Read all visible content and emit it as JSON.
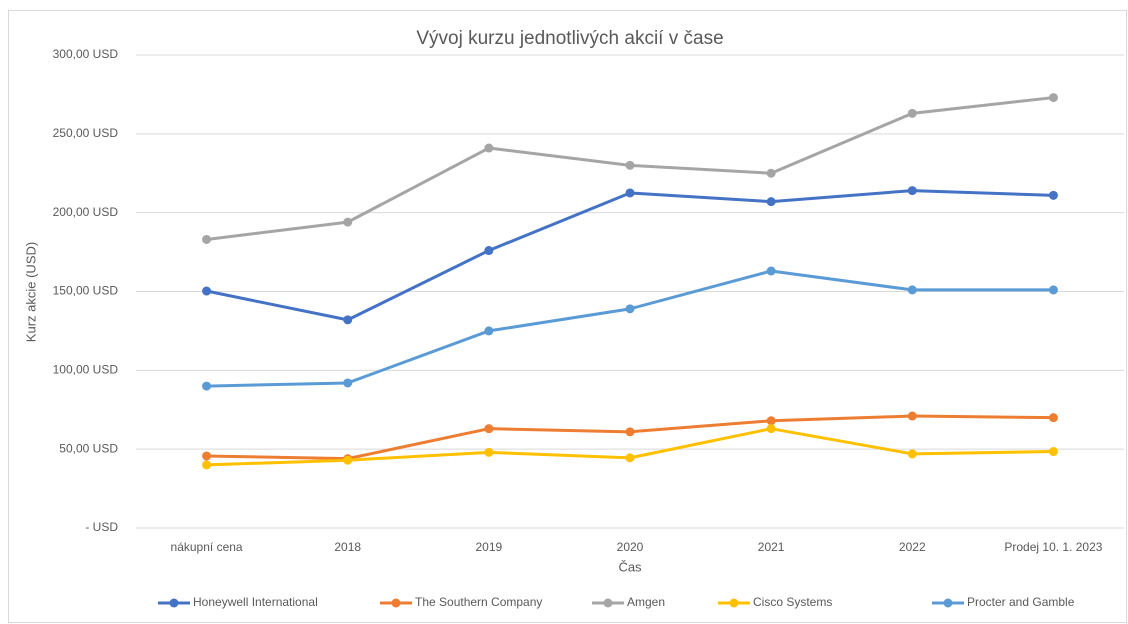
{
  "chart_data": {
    "type": "line",
    "title": "Vývoj kurzu jednotlivých akcií v čase",
    "x_label": "Čas",
    "y_label": "Kurz akcie (USD)",
    "categories": [
      "nákupní cena",
      "2018",
      "2019",
      "2020",
      "2021",
      "2022",
      "Prodej 10. 1. 2023"
    ],
    "series": [
      {
        "name": "Honeywell International",
        "color": "#4472c4",
        "values": [
          150.3,
          132,
          176,
          212.5,
          207,
          214,
          211
        ]
      },
      {
        "name": "The Southern Company",
        "color": "#ed7d31",
        "values": [
          45.7,
          44,
          63,
          61,
          68,
          71,
          70
        ]
      },
      {
        "name": "Amgen",
        "color": "#a5a5a5",
        "values": [
          183,
          194,
          241,
          230,
          225,
          263,
          273
        ]
      },
      {
        "name": "Cisco Systems",
        "color": "#ffc000",
        "values": [
          40,
          43,
          48,
          44.5,
          63,
          47,
          48.5
        ]
      },
      {
        "name": "Procter and Gamble",
        "color": "#5b9bd5",
        "values": [
          90,
          92,
          125,
          139,
          163,
          151,
          151
        ]
      }
    ],
    "ylim": [
      0,
      300
    ],
    "yticks": [
      {
        "value": 0,
        "label": "-   USD"
      },
      {
        "value": 50,
        "label": "50,00 USD"
      },
      {
        "value": 100,
        "label": "100,00 USD"
      },
      {
        "value": 150,
        "label": "150,00 USD"
      },
      {
        "value": 200,
        "label": "200,00 USD"
      },
      {
        "value": 250,
        "label": "250,00 USD"
      },
      {
        "value": 300,
        "label": "300,00 USD"
      }
    ],
    "grid": true,
    "legend": "bottom"
  }
}
